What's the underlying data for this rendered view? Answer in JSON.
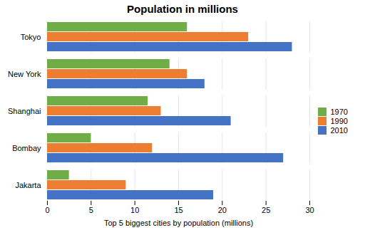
{
  "chart_data": {
    "type": "bar",
    "orientation": "horizontal",
    "title": "Population in millions",
    "xlabel": "Top 5 biggest cities by population (millions)",
    "categories": [
      "Tokyo",
      "New York",
      "Shanghai",
      "Bombay",
      "Jakarta"
    ],
    "series": [
      {
        "name": "1970",
        "color": "#70ad47",
        "values": [
          16,
          14,
          11.5,
          5,
          2.5
        ]
      },
      {
        "name": "1990",
        "color": "#ed7d31",
        "values": [
          23,
          16,
          13,
          12,
          9
        ]
      },
      {
        "name": "2010",
        "color": "#4472c4",
        "values": [
          28,
          18,
          21,
          27,
          19
        ]
      }
    ],
    "xlim": [
      0,
      30
    ],
    "xticks": [
      0,
      5,
      10,
      15,
      20,
      25,
      30
    ],
    "grid": true,
    "legend": "right"
  }
}
